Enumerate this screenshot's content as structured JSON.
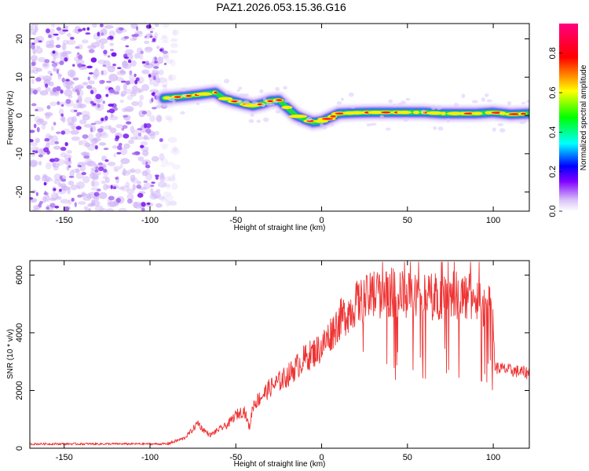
{
  "chart_data": [
    {
      "type": "heatmap",
      "title": "PAZ1.2026.053.15.36.G16",
      "xlabel": "Height of straight line (km)",
      "ylabel": "Frequency (Hz)",
      "xlim": [
        -170,
        121
      ],
      "ylim": [
        -25,
        24
      ],
      "xticks": [
        -150,
        -100,
        -50,
        0,
        50,
        100
      ],
      "yticks": [
        20,
        10,
        0,
        -10,
        -20
      ],
      "noise_region_x": [
        -170,
        -90
      ],
      "ridge": {
        "x": [
          -92,
          -80,
          -70,
          -62,
          -57,
          -52,
          -45,
          -40,
          -35,
          -30,
          -25,
          -20,
          -15,
          -10,
          -5,
          0,
          5,
          10,
          20,
          30,
          40,
          50,
          60,
          70,
          80,
          90,
          100,
          110,
          121
        ],
        "y": [
          4.5,
          5.0,
          5.5,
          6.0,
          4.5,
          3.8,
          3.0,
          2.5,
          3.0,
          3.8,
          4.0,
          2.0,
          0.0,
          -1.0,
          -1.8,
          -1.5,
          -0.5,
          0.5,
          0.7,
          0.8,
          0.8,
          0.8,
          0.8,
          0.5,
          0.5,
          0.5,
          0.8,
          0.3,
          0.5
        ]
      },
      "colorbar": {
        "label": "Normalized spectral amplitude",
        "min": 0.0,
        "max": 0.95,
        "ticks": [
          "0.0",
          "0.2",
          "0.4",
          "0.6",
          "0.8"
        ],
        "tick_values": [
          0.0,
          0.2,
          0.4,
          0.6,
          0.8
        ]
      }
    },
    {
      "type": "line",
      "xlabel": "Height of straight line (km)",
      "ylabel": "SNR (10 * v/v)",
      "xlim": [
        -170,
        121
      ],
      "ylim": [
        0,
        6500
      ],
      "xticks": [
        -150,
        -100,
        -50,
        0,
        50,
        100
      ],
      "yticks": [
        0,
        2000,
        4000,
        6000
      ],
      "color": "#ee3333",
      "series": [
        {
          "name": "SNR",
          "x": [
            -170,
            -150,
            -120,
            -100,
            -90,
            -85,
            -80,
            -75,
            -72,
            -70,
            -65,
            -60,
            -55,
            -50,
            -45,
            -42,
            -40,
            -30,
            -20,
            -10,
            0,
            10,
            20,
            30,
            40,
            50,
            60,
            70,
            80,
            90,
            99,
            100,
            101,
            110,
            121
          ],
          "y": [
            150,
            150,
            150,
            150,
            150,
            250,
            350,
            650,
            900,
            700,
            450,
            650,
            800,
            1150,
            1300,
            700,
            1500,
            2100,
            2500,
            3100,
            3500,
            4400,
            5000,
            5300,
            5400,
            5300,
            5200,
            5300,
            5300,
            5200,
            4800,
            4200,
            2800,
            2700,
            2600
          ]
        }
      ]
    }
  ]
}
